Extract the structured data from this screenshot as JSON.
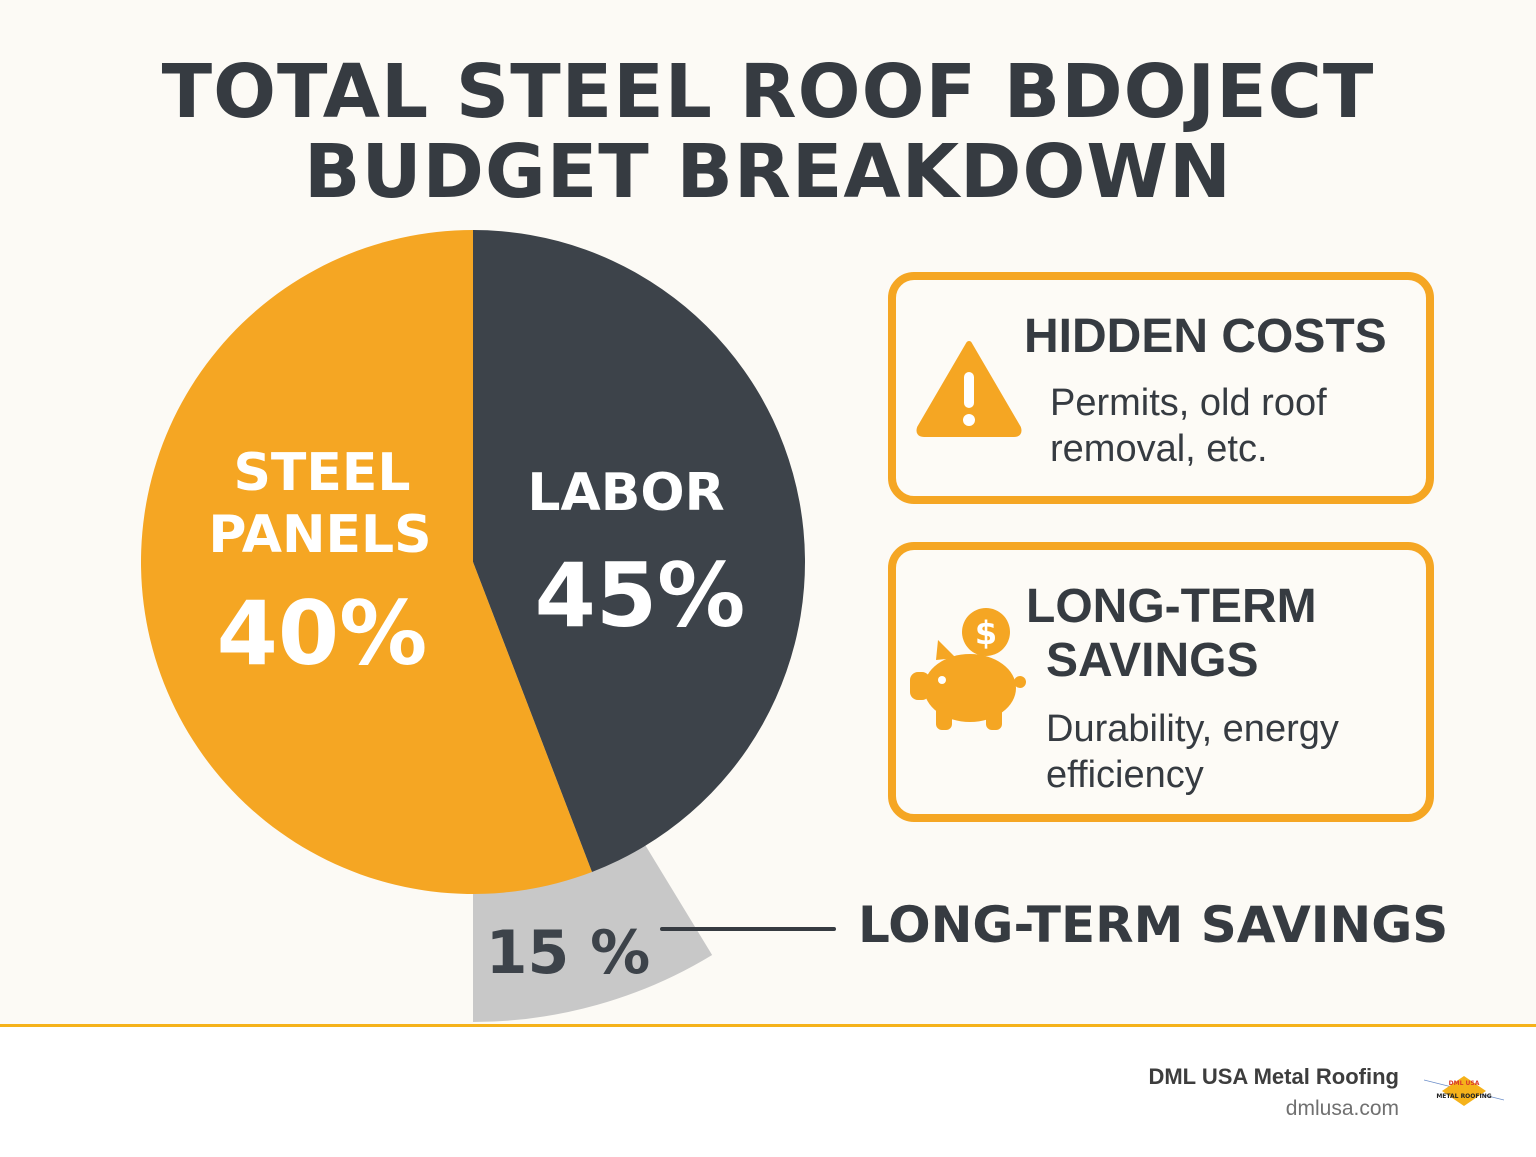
{
  "title_line1": "TOTAL STEEL ROOF BDOJECT",
  "title_line2": "BUDGET BREAKDOWN",
  "chart_data": {
    "type": "pie",
    "title": "TOTAL STEEL ROOF BDOJECT BUDGET BREAKDOWN",
    "slices": [
      {
        "name": "LABOR",
        "value": 45,
        "label": "45%",
        "color": "#3d434a"
      },
      {
        "name": "STEEL PANELS",
        "value": 40,
        "label": "40%",
        "color": "#f5a623"
      },
      {
        "name": "LONG-TERM SAVINGS",
        "value": 15,
        "label": "15 %",
        "color": "#c8c8c8",
        "exploded": true
      }
    ],
    "slice_text": {
      "steel_line1": "STEEL",
      "steel_line2": "PANELS",
      "labor": "LABOR"
    },
    "callout": "LONG-TERM SAVINGS"
  },
  "cards": [
    {
      "icon": "warning-icon",
      "title": "HIDDEN COSTS",
      "text_line1": "Permits, old roof",
      "text_line2": "removal, etc."
    },
    {
      "icon": "piggy-bank-icon",
      "title_line1": "LONG-TERM",
      "title_line2": "SAVINGS",
      "text_line1": "Durability, energy",
      "text_line2": "efficiency"
    }
  ],
  "footer": {
    "brand": "DML USA Metal Roofing",
    "site": "dmlusa.com",
    "logo_text1": "DML USA",
    "logo_text2": "METAL ROOFING"
  },
  "colors": {
    "accent": "#f5a623",
    "dark": "#3d434a",
    "gray": "#c8c8c8"
  }
}
